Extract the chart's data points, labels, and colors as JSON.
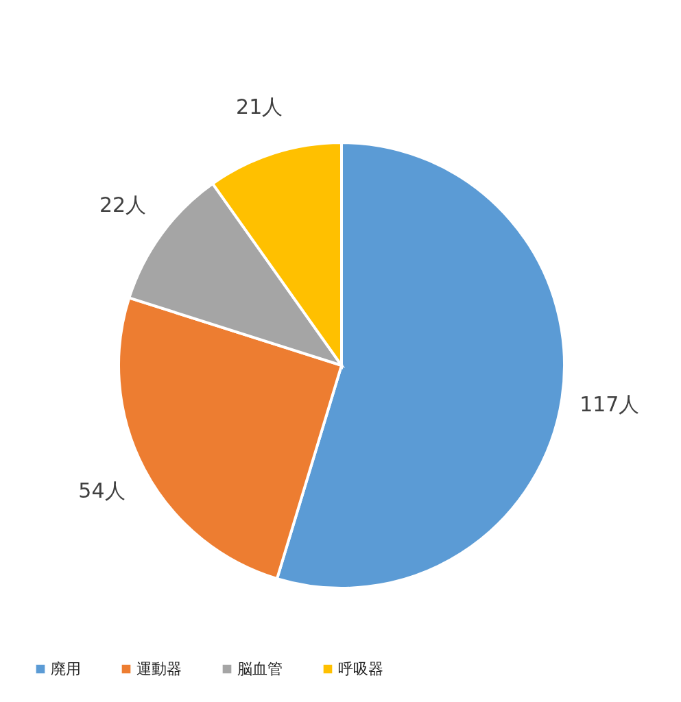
{
  "chart_data": {
    "type": "pie",
    "categories": [
      "廃用",
      "運動器",
      "脳血管",
      "呼吸器"
    ],
    "values": [
      117,
      54,
      22,
      21
    ],
    "colors": [
      "#5b9bd5",
      "#ed7d31",
      "#a5a5a5",
      "#ffc000"
    ],
    "value_labels": [
      "117人",
      "54人",
      "22人",
      "21人"
    ],
    "legend": "bottom"
  }
}
